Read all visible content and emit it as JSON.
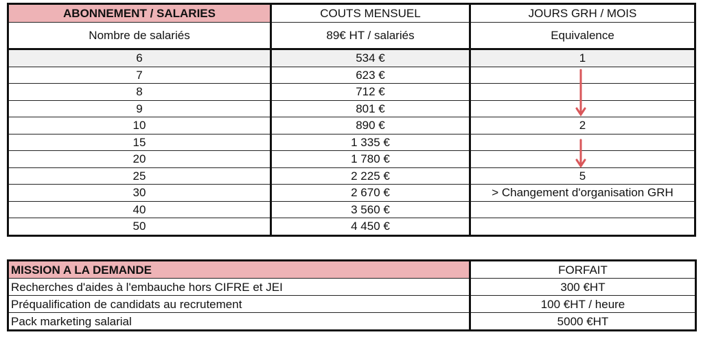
{
  "subscription_table": {
    "headers": [
      "ABONNEMENT / SALARIES",
      "COUTS MENSUEL",
      "JOURS GRH / MOIS"
    ],
    "subheaders": [
      "Nombre de salariés",
      "89€ HT / salariés",
      "Equivalence"
    ],
    "rows": [
      {
        "employees": "6",
        "cost": "534 €",
        "equivalence": "1"
      },
      {
        "employees": "7",
        "cost": "623 €",
        "equivalence": ""
      },
      {
        "employees": "8",
        "cost": "712 €",
        "equivalence": ""
      },
      {
        "employees": "9",
        "cost": "801 €",
        "equivalence": ""
      },
      {
        "employees": "10",
        "cost": "890 €",
        "equivalence": "2"
      },
      {
        "employees": "15",
        "cost": "1 335 €",
        "equivalence": ""
      },
      {
        "employees": "20",
        "cost": "1 780 €",
        "equivalence": ""
      },
      {
        "employees": "25",
        "cost": "2 225 €",
        "equivalence": "5"
      },
      {
        "employees": "30",
        "cost": "2 670 €",
        "equivalence": "> Changement d'organisation GRH"
      },
      {
        "employees": "40",
        "cost": "3 560 €",
        "equivalence": ""
      },
      {
        "employees": "50",
        "cost": "4 450 €",
        "equivalence": ""
      }
    ]
  },
  "mission_table": {
    "headers": [
      "MISSION A LA DEMANDE",
      "FORFAIT"
    ],
    "rows": [
      {
        "mission": "Recherches d'aides à l'embauche hors CIFRE et JEI",
        "price": "300 €HT"
      },
      {
        "mission": "Préqualification de candidats au recrutement",
        "price": "100 €HT / heure"
      },
      {
        "mission": "Pack marketing salarial",
        "price": "5000 €HT"
      }
    ]
  },
  "colors": {
    "header_pink": "#eeb3b6",
    "arrow_red": "#d9575a",
    "highlight_row": "#f0f0f0"
  }
}
